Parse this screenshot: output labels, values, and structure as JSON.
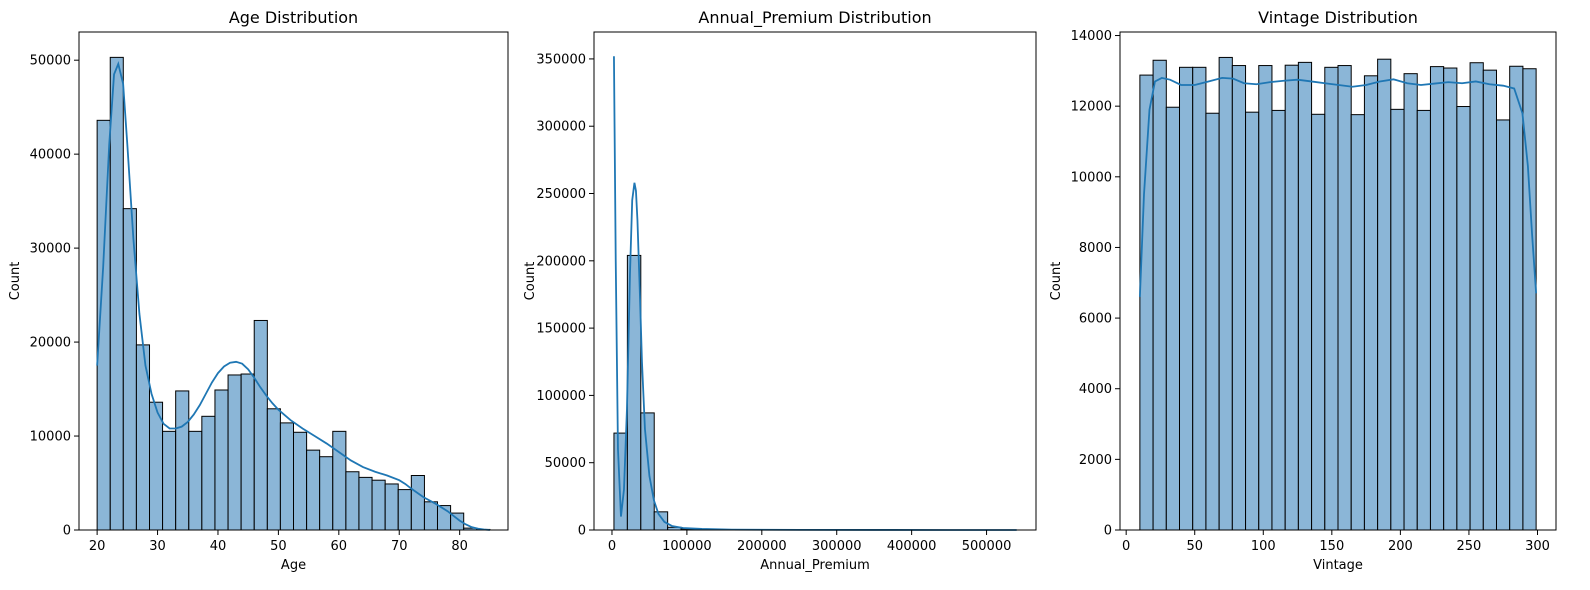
{
  "chart_data": [
    {
      "type": "bar",
      "title": "Age Distribution",
      "xlabel": "Age",
      "ylabel": "Count",
      "xlim": [
        17,
        88
      ],
      "ylim": [
        0,
        53000
      ],
      "xticks": [
        20,
        30,
        40,
        50,
        60,
        70,
        80
      ],
      "yticks": [
        0,
        10000,
        20000,
        30000,
        40000,
        50000
      ],
      "bin_edges": [
        20,
        22.17,
        24.33,
        26.5,
        28.67,
        30.83,
        33,
        35.17,
        37.33,
        39.5,
        41.67,
        43.83,
        46,
        48.17,
        50.33,
        52.5,
        54.67,
        56.83,
        59,
        61.17,
        63.33,
        65.5,
        67.67,
        69.83,
        72,
        74.17,
        76.33,
        78.5,
        80.67,
        82.83,
        85
      ],
      "values": [
        43600,
        50300,
        34200,
        19700,
        13600,
        10500,
        14800,
        10500,
        12100,
        14900,
        16500,
        16600,
        22300,
        12900,
        11400,
        10400,
        8500,
        7800,
        10500,
        6200,
        5600,
        5300,
        4900,
        4300,
        5800,
        3000,
        2600,
        1800,
        200,
        60
      ],
      "kde": {
        "x": [
          20,
          21,
          22,
          22.8,
          23.5,
          24.3,
          25,
          26,
          27,
          28,
          29,
          30,
          31,
          32,
          33,
          34,
          35,
          36,
          37,
          38,
          39,
          40,
          41,
          42,
          43,
          44,
          45,
          46,
          47,
          48,
          49,
          50,
          52,
          54,
          56,
          58,
          60,
          62,
          64,
          66,
          68,
          70,
          71,
          72,
          74,
          76,
          78,
          79,
          80,
          81,
          82,
          83,
          84,
          85
        ],
        "y": [
          17500,
          28000,
          41000,
          48500,
          49600,
          47500,
          41000,
          31000,
          23000,
          17500,
          14500,
          12500,
          11300,
          10800,
          10800,
          11000,
          11500,
          12300,
          13300,
          14500,
          15700,
          16700,
          17400,
          17800,
          17900,
          17700,
          17100,
          16200,
          15200,
          14300,
          13500,
          12800,
          11700,
          10800,
          10000,
          9200,
          8300,
          7400,
          6700,
          6200,
          5800,
          5300,
          4900,
          4400,
          3500,
          2800,
          2000,
          1500,
          1000,
          600,
          300,
          150,
          50,
          0
        ]
      }
    },
    {
      "type": "bar",
      "title": "Annual_Premium Distribution",
      "xlabel": "Annual_Premium",
      "ylabel": "Count",
      "xlim": [
        -24000,
        566000
      ],
      "ylim": [
        0,
        370000
      ],
      "xticks": [
        0,
        100000,
        200000,
        300000,
        400000,
        500000
      ],
      "yticks": [
        0,
        50000,
        100000,
        150000,
        200000,
        250000,
        300000,
        350000
      ],
      "bin_edges": [
        2630,
        20550,
        38470,
        56390,
        74310,
        92230,
        110150,
        128070,
        145990,
        163910,
        181830,
        199750,
        217670,
        235590,
        253510,
        271430,
        289350,
        307270,
        325190,
        343110,
        361030,
        378950,
        396870,
        414790,
        432710,
        450630,
        468550,
        486470,
        504390,
        522310,
        540230
      ],
      "values": [
        72000,
        204000,
        87000,
        13500,
        2000,
        800,
        300,
        150,
        80,
        50,
        30,
        20,
        15,
        10,
        8,
        5,
        5,
        4,
        3,
        3,
        2,
        2,
        2,
        1,
        1,
        1,
        1,
        1,
        1,
        1
      ],
      "kde": {
        "x": [
          2630,
          5000,
          8000,
          12000,
          16000,
          20000,
          24000,
          27000,
          30000,
          32000,
          34000,
          37000,
          40000,
          44000,
          50000,
          56000,
          62000,
          70000,
          80000,
          95000,
          120000,
          160000,
          250000,
          350000,
          450000,
          540230
        ],
        "y": [
          352000,
          200000,
          60000,
          10000,
          30000,
          90000,
          190000,
          245000,
          258000,
          252000,
          230000,
          180000,
          125000,
          75000,
          40000,
          22000,
          12000,
          6000,
          3000,
          1500,
          800,
          300,
          100,
          50,
          20,
          0
        ]
      }
    },
    {
      "type": "bar",
      "title": "Vintage Distribution",
      "xlabel": "Vintage",
      "ylabel": "Count",
      "xlim": [
        -4.5,
        313.5
      ],
      "ylim": [
        0,
        14100
      ],
      "xticks": [
        0,
        50,
        100,
        150,
        200,
        250,
        300
      ],
      "yticks": [
        0,
        2000,
        4000,
        6000,
        8000,
        10000,
        12000,
        14000
      ],
      "bin_edges": [
        10,
        19.63,
        29.27,
        38.9,
        48.53,
        58.17,
        67.8,
        77.43,
        87.07,
        96.7,
        106.33,
        115.97,
        125.6,
        135.23,
        144.87,
        154.5,
        164.13,
        173.77,
        183.4,
        193.03,
        202.67,
        212.3,
        221.93,
        231.57,
        241.2,
        250.83,
        260.47,
        270.1,
        279.73,
        289.37,
        299
      ],
      "values": [
        12880,
        13300,
        11970,
        13100,
        13100,
        11800,
        13380,
        13150,
        11830,
        13150,
        11880,
        13160,
        13240,
        11770,
        13100,
        13150,
        11760,
        12860,
        13330,
        11910,
        12920,
        11880,
        13120,
        13080,
        11990,
        13230,
        13020,
        11610,
        13130,
        13060
      ],
      "kde": {
        "x": [
          10,
          13,
          17,
          21,
          26,
          32,
          40,
          50,
          60,
          70,
          78,
          86,
          95,
          105,
          115,
          125,
          135,
          145,
          155,
          165,
          175,
          185,
          195,
          205,
          215,
          225,
          235,
          245,
          255,
          265,
          275,
          283,
          289,
          293,
          296,
          299
        ],
        "y": [
          6600,
          9500,
          11900,
          12700,
          12800,
          12750,
          12600,
          12600,
          12700,
          12800,
          12780,
          12650,
          12620,
          12680,
          12720,
          12750,
          12700,
          12650,
          12600,
          12550,
          12600,
          12700,
          12760,
          12650,
          12600,
          12640,
          12680,
          12650,
          12700,
          12620,
          12580,
          12500,
          11800,
          10300,
          8400,
          6700
        ]
      }
    }
  ]
}
